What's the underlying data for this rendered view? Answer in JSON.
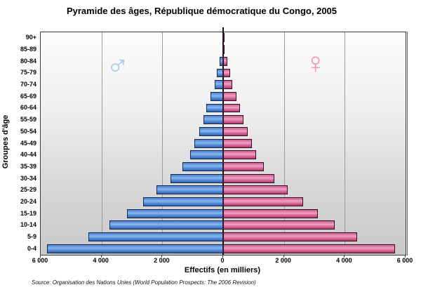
{
  "title": "Pyramide des âges, République démocratique du Congo, 2005",
  "symbols": {
    "male": "♂",
    "female": "♀"
  },
  "source": "Source: Organisation des Nations Unies (World Population Prospects: The 2006 Revision)",
  "colors": {
    "male_bar": "#4a80d0",
    "female_bar": "#e077a4",
    "male_symbol": "#a9c7ef",
    "female_symbol": "#f591bd",
    "gridline": "#9c9c9c",
    "axis": "#3c3c3c"
  },
  "chart_data": {
    "type": "bar",
    "subtype": "population-pyramid",
    "title": "Pyramide des âges, République démocratique du Congo, 2005",
    "xlabel": "Effectifs (en milliers)",
    "ylabel": "Groupes d'âge",
    "grid": true,
    "xlim": [
      -6000,
      6000
    ],
    "x_tick_values": [
      -6000,
      -4000,
      -2000,
      0,
      2000,
      4000,
      6000
    ],
    "x_tick_labels": [
      "6 000",
      "4 000",
      "2 000",
      "0",
      "2 000",
      "4 000",
      "6 000"
    ],
    "categories_bottom_to_top": [
      "0-4",
      "5-9",
      "10-14",
      "15-19",
      "20-24",
      "25-29",
      "30-34",
      "35-39",
      "40-44",
      "45-49",
      "50-54",
      "55-59",
      "60-64",
      "65-69",
      "70-74",
      "75-79",
      "80-84",
      "85-89",
      "90+"
    ],
    "series": [
      {
        "name": "Hommes",
        "side": "left",
        "values": [
          5785,
          4440,
          3730,
          3155,
          2640,
          2195,
          1730,
          1350,
          1095,
          940,
          790,
          655,
          555,
          410,
          285,
          200,
          120,
          30,
          8
        ]
      },
      {
        "name": "Femmes",
        "side": "right",
        "values": [
          5655,
          4400,
          3670,
          3115,
          2630,
          2130,
          1690,
          1330,
          1075,
          935,
          815,
          675,
          565,
          445,
          310,
          220,
          140,
          45,
          15
        ]
      }
    ],
    "units": "milliers"
  }
}
